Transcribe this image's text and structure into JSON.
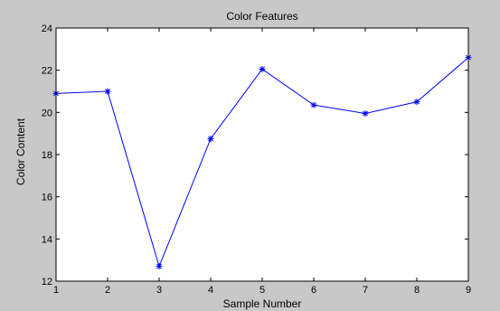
{
  "figure_background": "#c8c8c8",
  "axes_background": "#ffffff",
  "line_color": "#0000ff",
  "chart_data": {
    "type": "line",
    "title": "Color Features",
    "xlabel": "Sample Number",
    "ylabel": "Color Content",
    "x": [
      1,
      2,
      3,
      4,
      5,
      6,
      7,
      8,
      9
    ],
    "series": [
      {
        "values": [
          20.9,
          21.0,
          12.7,
          18.75,
          22.05,
          20.35,
          19.95,
          20.5,
          22.6
        ]
      }
    ],
    "xlim": [
      1,
      9
    ],
    "ylim": [
      12,
      24
    ],
    "xticks": [
      1,
      2,
      3,
      4,
      5,
      6,
      7,
      8,
      9
    ],
    "yticks": [
      12,
      14,
      16,
      18,
      20,
      22,
      24
    ],
    "grid": false,
    "marker": "asterisk"
  }
}
